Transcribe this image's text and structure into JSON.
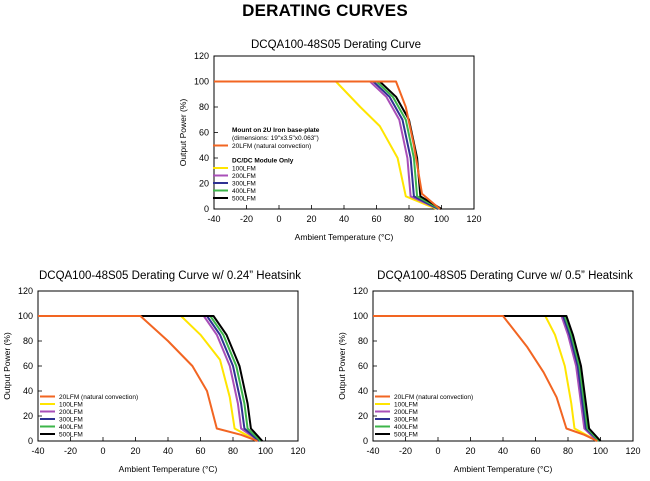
{
  "page_title": "DERATING CURVES",
  "chart_data": [
    {
      "type": "line",
      "title": "DCQA100-48S05 Derating Curve",
      "xlabel": "Ambient Temperature (°C)",
      "ylabel": "Output Power (%)",
      "xlim": [
        -40,
        120
      ],
      "ylim": [
        0,
        120
      ],
      "xticks": [
        -40,
        -20,
        0,
        20,
        40,
        60,
        80,
        100,
        120
      ],
      "yticks": [
        0,
        20,
        40,
        60,
        80,
        100,
        120
      ],
      "grid": false,
      "legend_position": "left-bottom",
      "legend_header": "Mount on 2U Iron base-plate",
      "legend_subheader": "(dimensions: 19\"x3.5\"x0.063\")",
      "legend_group_label": "DC/DC Module Only",
      "series": [
        {
          "name": "20LFM (natural convection)",
          "color": "#f26522",
          "group": 1,
          "x": [
            -40,
            72,
            78,
            83,
            88,
            99
          ],
          "y": [
            100,
            100,
            80,
            50,
            12,
            0
          ]
        },
        {
          "name": "100LFM",
          "color": "#ffe500",
          "group": 2,
          "x": [
            -40,
            35,
            50,
            62,
            73,
            78,
            97
          ],
          "y": [
            100,
            100,
            80,
            65,
            40,
            10,
            0
          ]
        },
        {
          "name": "200LFM",
          "color": "#a94fb8",
          "group": 2,
          "x": [
            -40,
            56,
            66,
            74,
            79,
            81,
            98
          ],
          "y": [
            100,
            100,
            88,
            70,
            40,
            10,
            0
          ]
        },
        {
          "name": "300LFM",
          "color": "#2e3192",
          "group": 2,
          "x": [
            -40,
            58,
            68,
            76,
            81,
            83,
            98
          ],
          "y": [
            100,
            100,
            88,
            70,
            40,
            10,
            0
          ]
        },
        {
          "name": "400LFM",
          "color": "#3cb54a",
          "group": 2,
          "x": [
            -40,
            60,
            70,
            78,
            83,
            85,
            99
          ],
          "y": [
            100,
            100,
            88,
            70,
            40,
            10,
            0
          ]
        },
        {
          "name": "500LFM",
          "color": "#000000",
          "group": 2,
          "x": [
            -40,
            62,
            72,
            80,
            85,
            87,
            100
          ],
          "y": [
            100,
            100,
            88,
            70,
            40,
            10,
            0
          ]
        }
      ]
    },
    {
      "type": "line",
      "title": "DCQA100-48S05 Derating Curve w/ 0.24” Heatsink",
      "xlabel": "Ambient Temperature (°C)",
      "ylabel": "Output Power (%)",
      "xlim": [
        -40,
        120
      ],
      "ylim": [
        0,
        120
      ],
      "xticks": [
        -40,
        -20,
        0,
        20,
        40,
        60,
        80,
        100,
        120
      ],
      "yticks": [
        0,
        20,
        40,
        60,
        80,
        100,
        120
      ],
      "grid": false,
      "legend_position": "bottom-left",
      "series": [
        {
          "name": "20LFM (natural convection)",
          "color": "#f26522",
          "x": [
            -40,
            23,
            40,
            55,
            64,
            70,
            85,
            95
          ],
          "y": [
            100,
            100,
            80,
            60,
            40,
            10,
            5,
            0
          ]
        },
        {
          "name": "100LFM",
          "color": "#ffe500",
          "x": [
            -40,
            48,
            60,
            72,
            78,
            81,
            95
          ],
          "y": [
            100,
            100,
            85,
            65,
            35,
            10,
            0
          ]
        },
        {
          "name": "200LFM",
          "color": "#a94fb8",
          "x": [
            -40,
            62,
            70,
            78,
            83,
            85,
            96
          ],
          "y": [
            100,
            100,
            85,
            60,
            30,
            10,
            0
          ]
        },
        {
          "name": "300LFM",
          "color": "#2e3192",
          "x": [
            -40,
            64,
            72,
            80,
            85,
            87,
            96
          ],
          "y": [
            100,
            100,
            85,
            60,
            30,
            10,
            0
          ]
        },
        {
          "name": "400LFM",
          "color": "#3cb54a",
          "x": [
            -40,
            66,
            74,
            82,
            87,
            89,
            97
          ],
          "y": [
            100,
            100,
            85,
            60,
            30,
            10,
            0
          ]
        },
        {
          "name": "500LFM",
          "color": "#000000",
          "x": [
            -40,
            68,
            76,
            84,
            89,
            91,
            98
          ],
          "y": [
            100,
            100,
            85,
            60,
            30,
            10,
            0
          ]
        }
      ]
    },
    {
      "type": "line",
      "title": "DCQA100-48S05 Derating Curve w/ 0.5” Heatsink",
      "xlabel": "Ambient Temperature (°C)",
      "ylabel": "Output Power (%)",
      "xlim": [
        -40,
        120
      ],
      "ylim": [
        0,
        120
      ],
      "xticks": [
        -40,
        -20,
        0,
        20,
        40,
        60,
        80,
        100,
        120
      ],
      "yticks": [
        0,
        20,
        40,
        60,
        80,
        100,
        120
      ],
      "grid": false,
      "legend_position": "bottom-left",
      "series": [
        {
          "name": "20LFM (natural convection)",
          "color": "#f26522",
          "x": [
            -40,
            40,
            55,
            65,
            73,
            79,
            90,
            98
          ],
          "y": [
            100,
            100,
            75,
            55,
            35,
            10,
            5,
            0
          ]
        },
        {
          "name": "100LFM",
          "color": "#ffe500",
          "x": [
            -40,
            66,
            72,
            78,
            82,
            84,
            98
          ],
          "y": [
            100,
            100,
            85,
            60,
            30,
            10,
            0
          ]
        },
        {
          "name": "200LFM",
          "color": "#a94fb8",
          "x": [
            -40,
            76,
            80,
            85,
            88,
            90,
            98
          ],
          "y": [
            100,
            100,
            85,
            60,
            30,
            10,
            0
          ]
        },
        {
          "name": "300LFM",
          "color": "#2e3192",
          "x": [
            -40,
            77,
            81,
            86,
            89,
            91,
            99
          ],
          "y": [
            100,
            100,
            85,
            60,
            30,
            10,
            0
          ]
        },
        {
          "name": "400LFM",
          "color": "#3cb54a",
          "x": [
            -40,
            78,
            82,
            87,
            90,
            92,
            99
          ],
          "y": [
            100,
            100,
            85,
            60,
            30,
            10,
            0
          ]
        },
        {
          "name": "500LFM",
          "color": "#000000",
          "x": [
            -40,
            79,
            83,
            88,
            91,
            93,
            100
          ],
          "y": [
            100,
            100,
            85,
            60,
            30,
            10,
            0
          ]
        }
      ]
    }
  ]
}
